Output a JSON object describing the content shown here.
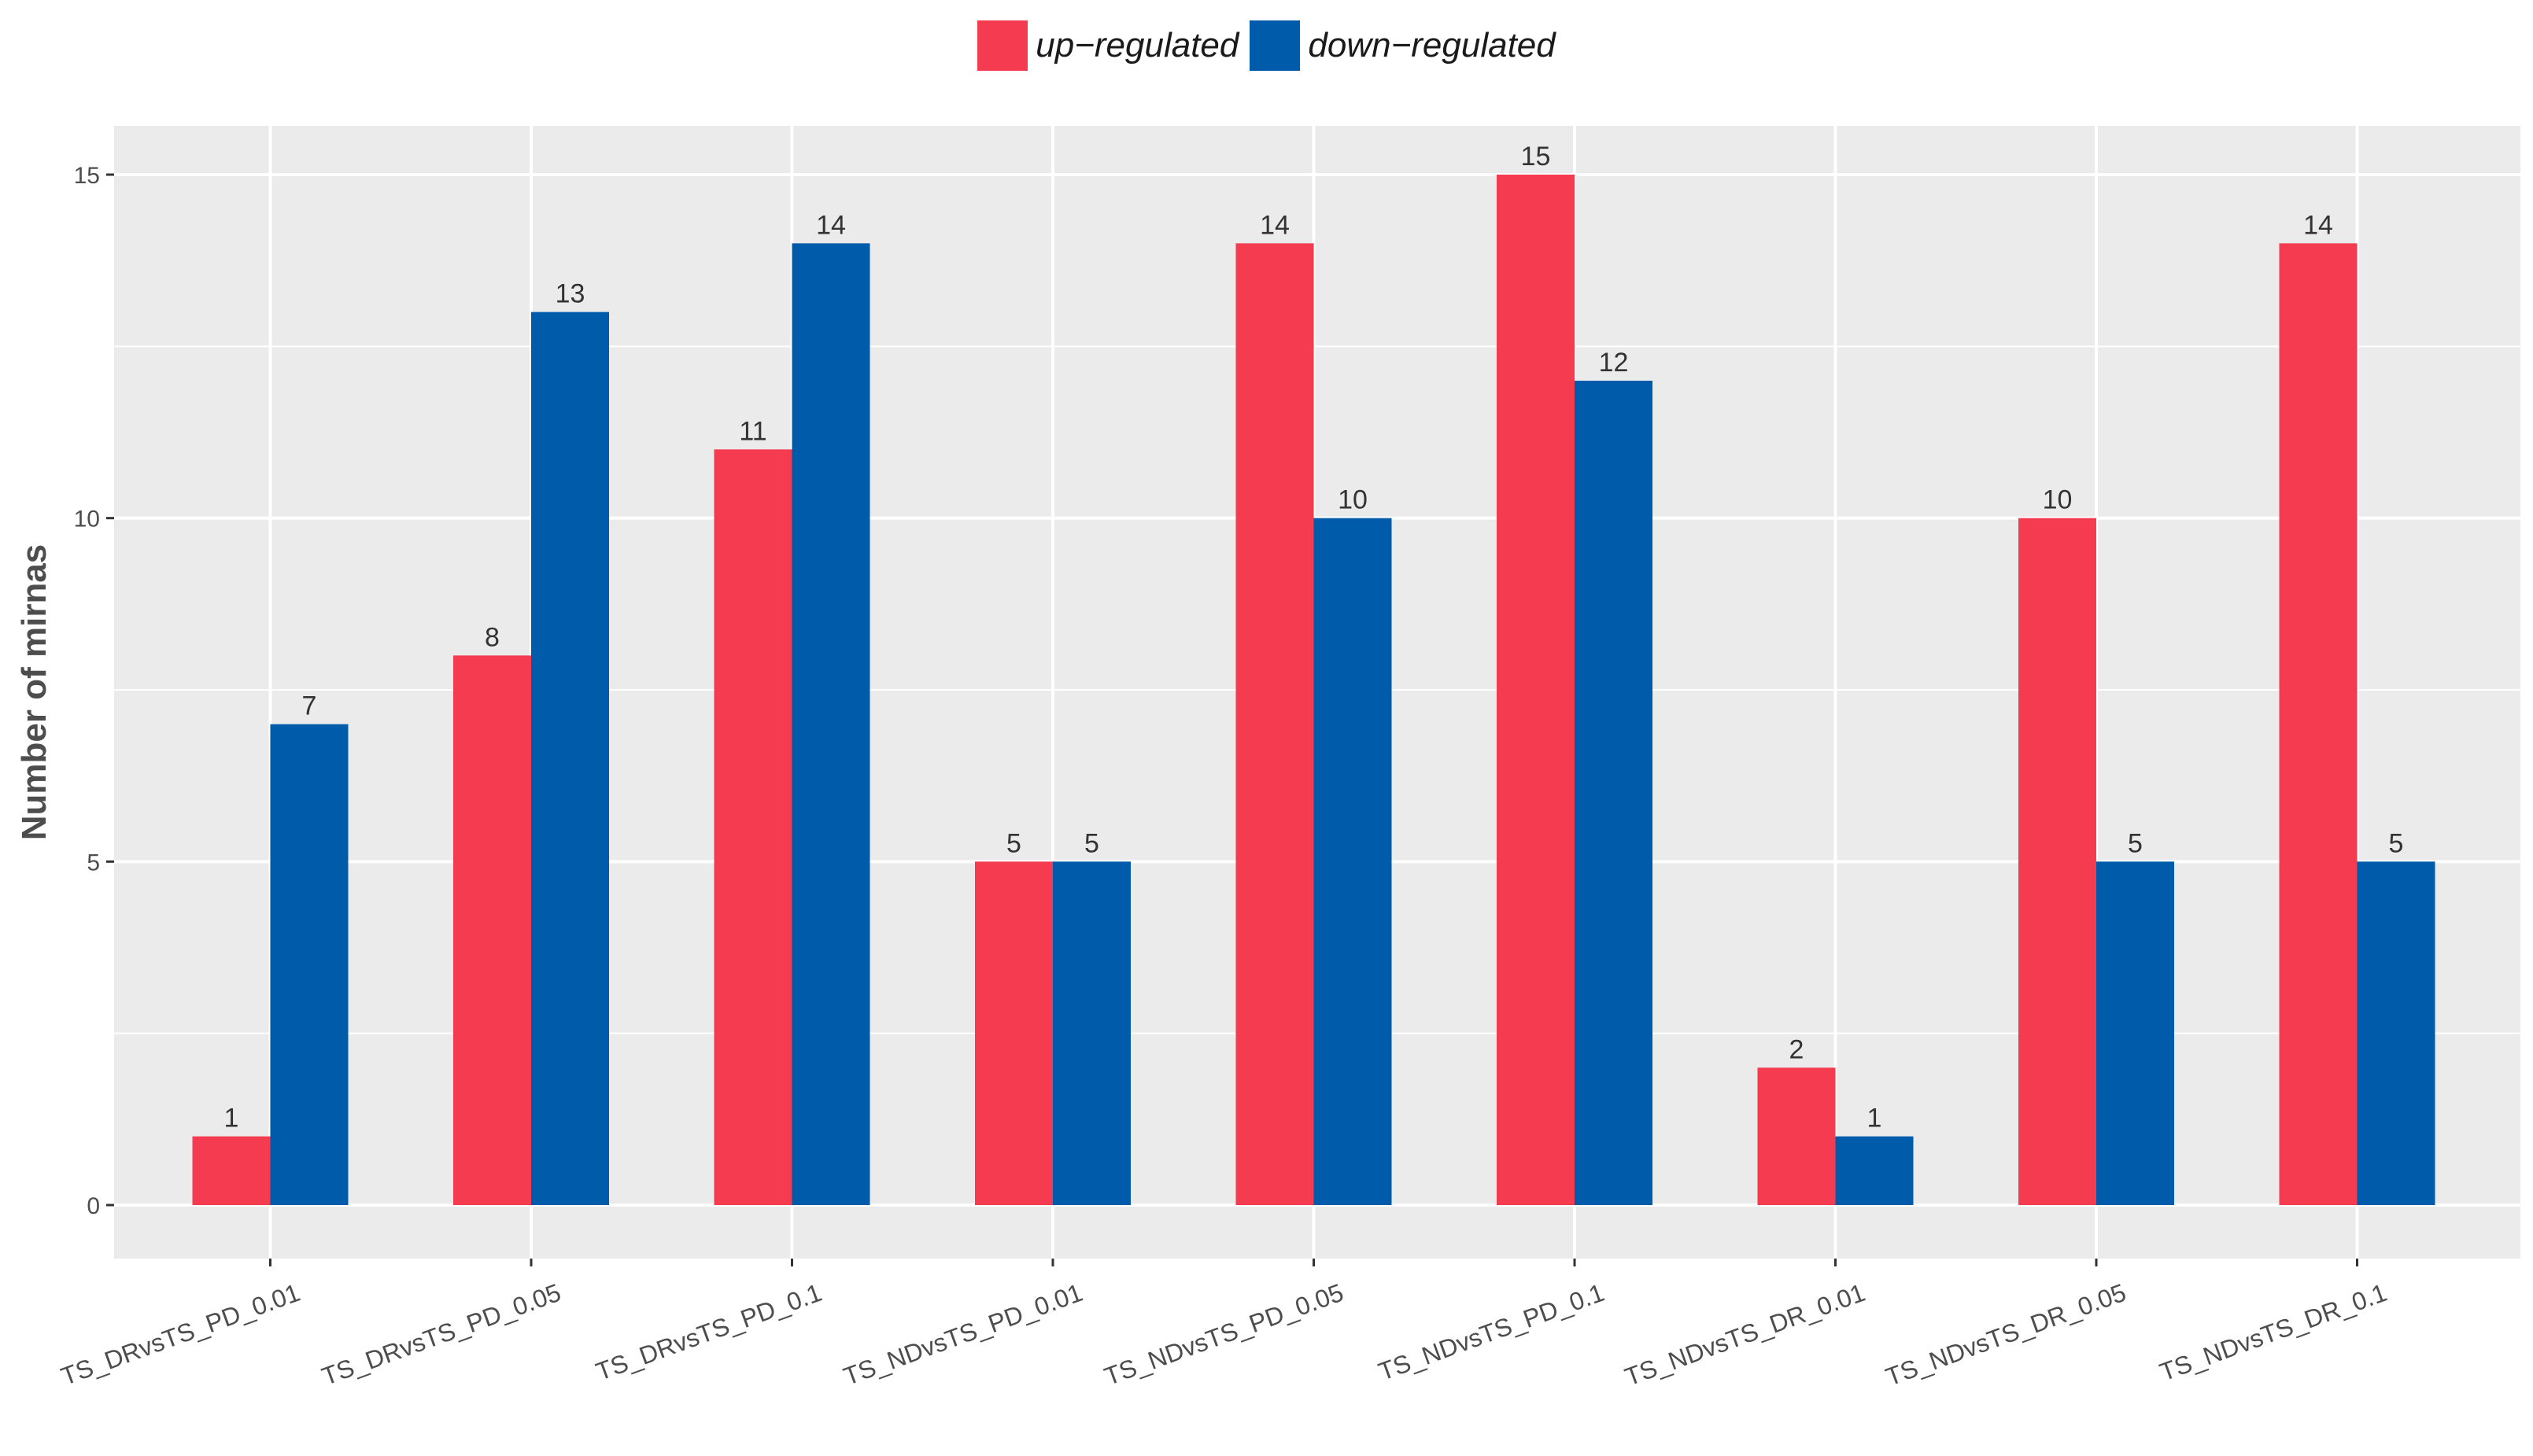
{
  "chart_data": {
    "type": "bar",
    "title": "",
    "xlabel": "",
    "ylabel": "Number of mirnas",
    "ylim": [
      0,
      15.75
    ],
    "yticks": [
      0,
      5,
      10,
      15
    ],
    "categories": [
      "TS_DRvsTS_PD_0.01",
      "TS_DRvsTS_PD_0.05",
      "TS_DRvsTS_PD_0.1",
      "TS_NDvsTS_PD_0.01",
      "TS_NDvsTS_PD_0.05",
      "TS_NDvsTS_PD_0.1",
      "TS_NDvsTS_DR_0.01",
      "TS_NDvsTS_DR_0.05",
      "TS_NDvsTS_DR_0.1"
    ],
    "series": [
      {
        "name": "up−regulated",
        "color": "#F43B4F",
        "values": [
          1,
          8,
          11,
          5,
          14,
          15,
          2,
          10,
          14
        ]
      },
      {
        "name": "down−regulated",
        "color": "#005BAA",
        "values": [
          7,
          13,
          14,
          5,
          10,
          12,
          1,
          5,
          5
        ]
      }
    ],
    "legend_position": "top",
    "grid": true,
    "panel_color": "#EBEBEB",
    "grid_color": "#FFFFFF"
  }
}
